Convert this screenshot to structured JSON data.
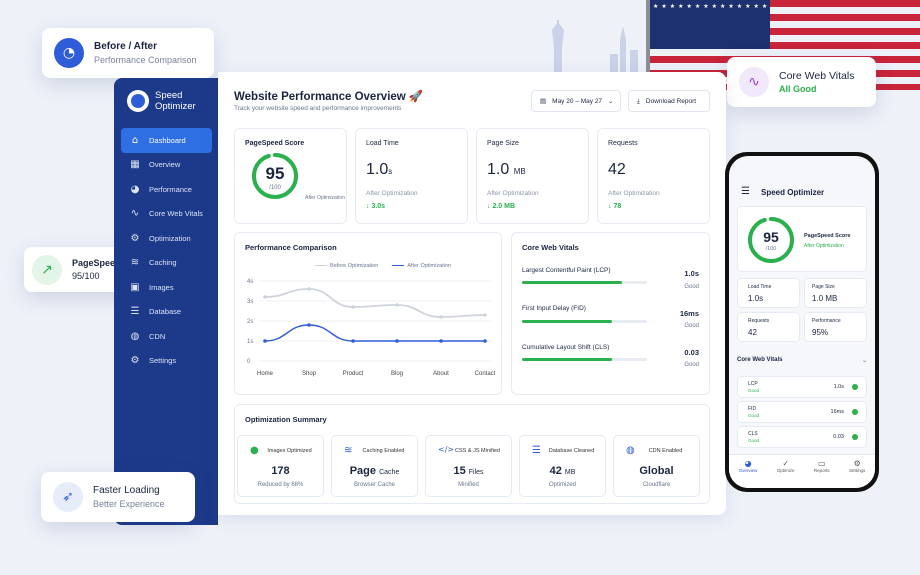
{
  "badges": {
    "before_after": {
      "title": "Before / After",
      "subtitle": "Performance Comparison",
      "icon": "speedometer-icon"
    },
    "cwv": {
      "title": "Core Web Vitals",
      "subtitle": "All Good",
      "icon": "pulse-icon"
    },
    "pagespeed": {
      "title": "PageSpeed Score",
      "subtitle": "95/100",
      "icon": "trend-icon"
    },
    "faster": {
      "title": "Faster Loading",
      "subtitle": "Better Experience",
      "icon": "rocket-icon"
    }
  },
  "brand": {
    "name": "Speed Optimizer"
  },
  "sidebar": {
    "items": [
      {
        "label": "Dashboard",
        "icon": "home-icon"
      },
      {
        "label": "Overview",
        "icon": "grid-icon"
      },
      {
        "label": "Performance",
        "icon": "gauge-icon"
      },
      {
        "label": "Core Web Vitals",
        "icon": "pulse-icon"
      },
      {
        "label": "Optimization",
        "icon": "gear-icon"
      },
      {
        "label": "Caching",
        "icon": "layers-icon"
      },
      {
        "label": "Images",
        "icon": "image-icon"
      },
      {
        "label": "Database",
        "icon": "database-icon"
      },
      {
        "label": "CDN",
        "icon": "globe-icon"
      },
      {
        "label": "Settings",
        "icon": "settings-icon"
      }
    ]
  },
  "header": {
    "title": "Website Performance Overview 🚀",
    "subtitle": "Track your website speed and performance improvements",
    "date_range": "May 20 – May 27",
    "download_label": "Download Report"
  },
  "kpis": {
    "pagespeed": {
      "label": "PageSpeed Score",
      "value": "95",
      "out_of": "/100",
      "after": "After Optimization",
      "score_fraction": 0.95
    },
    "load_time": {
      "label": "Load Time",
      "value": "1.0",
      "unit": "s",
      "after": "After Optimization",
      "delta": "↓ 3.0s"
    },
    "page_size": {
      "label": "Page Size",
      "value": "1.0",
      "unit": "MB",
      "after": "After Optimization",
      "delta": "↓ 2.0 MB"
    },
    "requests": {
      "label": "Requests",
      "value": "42",
      "after": "After Optimization",
      "delta": "↓ 78"
    }
  },
  "performance": {
    "title": "Performance Comparison"
  },
  "chart_data": {
    "type": "line",
    "categories": [
      "Home",
      "Shop",
      "Product",
      "Blog",
      "About",
      "Contact"
    ],
    "series": [
      {
        "name": "Before Optimization",
        "values": [
          3.2,
          3.6,
          2.7,
          2.8,
          2.2,
          2.3
        ],
        "color": "#cfd3dc"
      },
      {
        "name": "After Optimization",
        "values": [
          1.0,
          1.8,
          1.0,
          1.0,
          1.0,
          1.0
        ],
        "color": "#2f5cd8"
      }
    ],
    "yticks": [
      "0",
      "1s",
      "2s",
      "3s",
      "4s"
    ],
    "ylim": [
      0,
      4
    ],
    "legend": "top"
  },
  "core_web_vitals": {
    "title": "Core Web Vitals",
    "items": [
      {
        "name": "Largest Contentful Paint (LCP)",
        "value": "1.0s",
        "status": "Good",
        "fill": 0.8
      },
      {
        "name": "First Input Delay (FID)",
        "value": "16ms",
        "status": "Good",
        "fill": 0.72
      },
      {
        "name": "Cumulative Layout Shift (CLS)",
        "value": "0.03",
        "status": "Good",
        "fill": 0.72
      }
    ]
  },
  "summary": {
    "title": "Optimization Summary",
    "items": [
      {
        "label": "Images Optimized",
        "value": "178",
        "unit": "",
        "sub": "Reduced by 68%",
        "icon": "image-icon"
      },
      {
        "label": "Caching Enabled",
        "value": "Page",
        "unit": "Cache",
        "sub": "Browser Cache",
        "icon": "layers-icon"
      },
      {
        "label": "CSS & JS Minified",
        "value": "15",
        "unit": "Files",
        "sub": "Minified",
        "icon": "code-icon"
      },
      {
        "label": "Database Cleaned",
        "value": "42",
        "unit": "MB",
        "sub": "Optimized",
        "icon": "database-icon"
      },
      {
        "label": "CDN Enabled",
        "value": "Global",
        "unit": "",
        "sub": "Cloudflare",
        "icon": "globe-icon"
      }
    ]
  },
  "phone": {
    "title": "Speed Optimizer",
    "score": "95",
    "out_of": "/100",
    "score_label": "PageSpeed Score",
    "score_sub": "After Optimization",
    "stats": [
      {
        "label": "Load Time",
        "value": "1.0s"
      },
      {
        "label": "Page Size",
        "value": "1.0 MB"
      },
      {
        "label": "Requests",
        "value": "42"
      },
      {
        "label": "Performance",
        "value": "95%"
      }
    ],
    "cwv_title": "Core Web Vitals",
    "cwv": [
      {
        "name": "LCP",
        "status": "Good",
        "value": "1.0s"
      },
      {
        "name": "FID",
        "status": "Good",
        "value": "16ms"
      },
      {
        "name": "CLS",
        "status": "Good",
        "value": "0.03"
      }
    ],
    "tabs": [
      {
        "label": "Overview",
        "icon": "gauge-icon"
      },
      {
        "label": "Optimize",
        "icon": "check-icon"
      },
      {
        "label": "Reports",
        "icon": "document-icon"
      },
      {
        "label": "Settings",
        "icon": "gear-icon"
      }
    ]
  },
  "colors": {
    "primary": "#1d3a8a",
    "accent": "#2f6fe4",
    "good": "#2bb04e"
  }
}
